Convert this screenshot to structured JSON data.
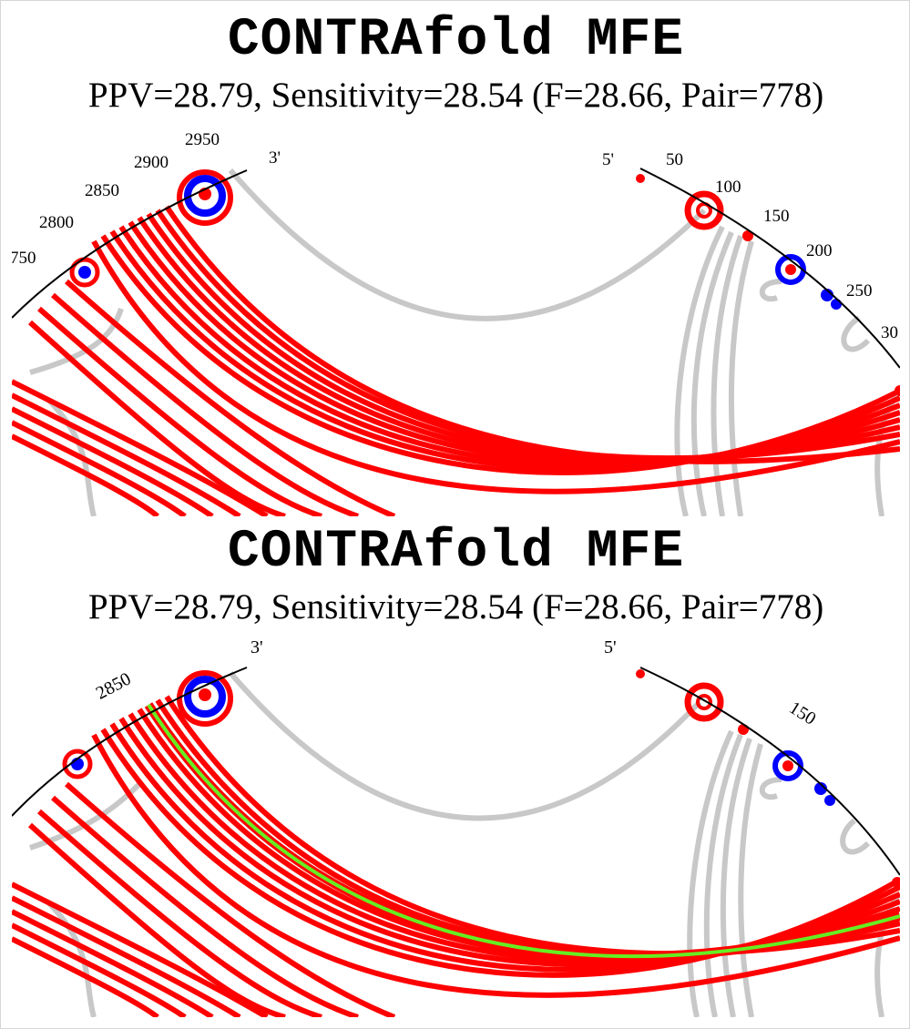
{
  "panels": [
    {
      "title": "CONTRAfold MFE",
      "stats": "PPV=28.79, Sensitivity=28.54 (F=28.66, Pair=778)",
      "labels": {
        "five_prime": "5'",
        "three_prime": "3'",
        "ticks": [
          "50",
          "100",
          "150",
          "200",
          "250",
          "30",
          "2950",
          "2900",
          "2850",
          "2800",
          "750"
        ]
      }
    },
    {
      "title": "CONTRAfold MFE",
      "stats": "PPV=28.79, Sensitivity=28.54 (F=28.66, Pair=778)",
      "labels": {
        "five_prime": "5'",
        "three_prime": "3'",
        "ticks": [
          "150",
          "2850"
        ]
      }
    }
  ],
  "colors": {
    "true_positive": "#ff0000",
    "false_positive": "#c8c8c8",
    "other": "#0000ff",
    "highlight": "#66ee22",
    "backbone": "#000000"
  }
}
